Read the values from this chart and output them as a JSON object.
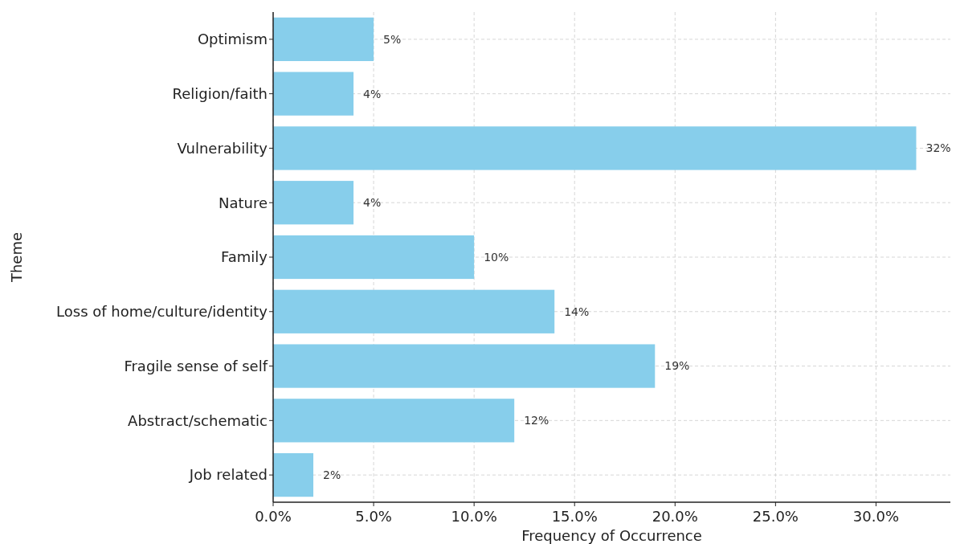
{
  "chart_data": {
    "type": "bar",
    "orientation": "horizontal",
    "xlabel": "Frequency of Occurrence",
    "ylabel": "Theme",
    "categories": [
      "Optimism",
      "Religion/faith",
      "Vulnerability",
      "Nature",
      "Family",
      "Loss of home/culture/identity",
      "Fragile sense of self",
      "Abstract/schematic",
      "Job related"
    ],
    "values": [
      5,
      4,
      32,
      4,
      10,
      14,
      19,
      12,
      2
    ],
    "value_labels": [
      "5%",
      "4%",
      "32%",
      "4%",
      "10%",
      "14%",
      "19%",
      "12%",
      "2%"
    ],
    "color": "#87ceeb",
    "xlim": [
      0,
      33.7
    ],
    "xticks": [
      {
        "value": 0,
        "label": "0.0%"
      },
      {
        "value": 5,
        "label": "5.0%"
      },
      {
        "value": 10,
        "label": "10.0%"
      },
      {
        "value": 15,
        "label": "15.0%"
      },
      {
        "value": 20,
        "label": "20.0%"
      },
      {
        "value": 25,
        "label": "25.0%"
      },
      {
        "value": 30,
        "label": "30.0%"
      }
    ],
    "grid": true
  }
}
